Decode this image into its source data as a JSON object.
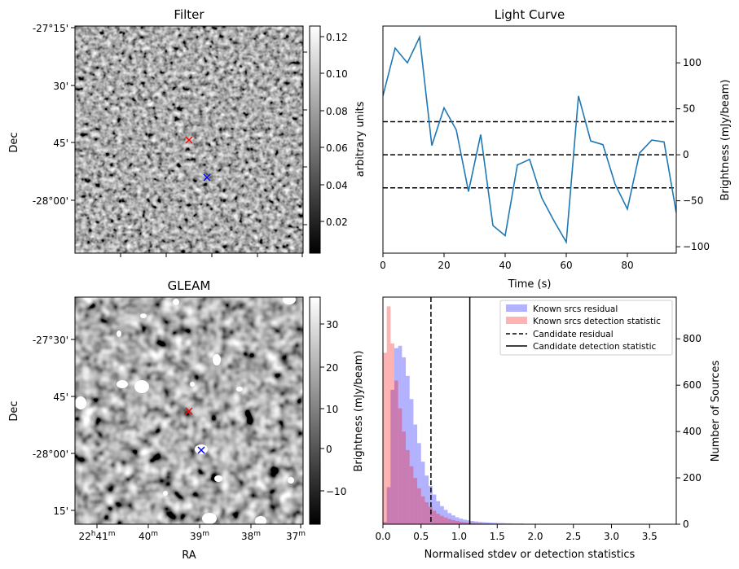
{
  "chart_data": [
    {
      "type": "heatmap",
      "title": "Filter",
      "xlabel": "",
      "ylabel": "Dec",
      "y_tick_labels": [
        "-27°15'",
        "30'",
        "45'",
        "-28°00'"
      ],
      "colorbar": {
        "label": "arbitrary units",
        "range": [
          0.003,
          0.126
        ],
        "tick_labels": [
          "0.02",
          "0.04",
          "0.06",
          "0.08",
          "0.10",
          "0.12"
        ],
        "tick_values": [
          0.02,
          0.04,
          0.06,
          0.08,
          0.1,
          0.12
        ],
        "colormap": "gray"
      },
      "markers": [
        {
          "symbol": "x",
          "color": "#ff0000",
          "dec": "-27°46'"
        },
        {
          "symbol": "x",
          "color": "#0000ff",
          "dec": "-27°52'"
        }
      ]
    },
    {
      "type": "line",
      "title": "Light Curve",
      "xlabel": "Time (s)",
      "ylabel": "Brightness (mJy/beam)",
      "xlim": [
        0,
        96
      ],
      "ylim": [
        -107,
        140
      ],
      "x_ticks": [
        0,
        20,
        40,
        60,
        80
      ],
      "y_ticks": [
        -100,
        -50,
        0,
        50,
        100
      ],
      "series": [
        {
          "color": "#1f77b4",
          "x": [
            0,
            4,
            8,
            12,
            16,
            20,
            24,
            28,
            32,
            36,
            40,
            44,
            48,
            52,
            56,
            60,
            64,
            68,
            72,
            76,
            80,
            84,
            88,
            92,
            96
          ],
          "values": [
            64,
            116,
            100,
            128,
            10,
            51,
            27,
            -40,
            22,
            -77,
            -88,
            -11,
            -5,
            -47,
            -72,
            -95,
            64,
            15,
            11,
            -32,
            -59,
            2,
            16,
            14,
            -63
          ]
        }
      ],
      "hlines": [
        {
          "y": 36,
          "style": "dashed"
        },
        {
          "y": 0,
          "style": "dashed"
        },
        {
          "y": -36,
          "style": "dashed"
        }
      ]
    },
    {
      "type": "heatmap",
      "title": "GLEAM",
      "xlabel": "RA",
      "ylabel": "Dec",
      "x_tick_labels": [
        {
          "main": "22",
          "h": "h",
          "num": "41",
          "m": "m"
        },
        {
          "main": "",
          "h": "",
          "num": "40",
          "m": "m"
        },
        {
          "main": "",
          "h": "",
          "num": "39",
          "m": "m"
        },
        {
          "main": "",
          "h": "",
          "num": "38",
          "m": "m"
        },
        {
          "main": "",
          "h": "",
          "num": "37",
          "m": "m"
        }
      ],
      "y_tick_labels": [
        "-27°30'",
        "45'",
        "-28°00'",
        "15'"
      ],
      "colorbar": {
        "label": "Brightness (mJy/beam)",
        "range": [
          -18,
          36
        ],
        "tick_labels": [
          "−10",
          "0",
          "10",
          "20",
          "30"
        ],
        "tick_values": [
          -10,
          0,
          10,
          20,
          30
        ],
        "colormap": "gray"
      },
      "markers": [
        {
          "symbol": "x",
          "color": "#ff0000",
          "dec": "-27°50'"
        },
        {
          "symbol": "x",
          "color": "#0000ff",
          "dec": "-28°00'"
        }
      ]
    },
    {
      "type": "bar",
      "xlabel": "Normalised stdev or detection statistics",
      "ylabel": "Number of Sources",
      "xlim": [
        0,
        3.85
      ],
      "ylim": [
        0,
        980
      ],
      "x_ticks": [
        0.0,
        0.5,
        1.0,
        1.5,
        2.0,
        2.5,
        3.0,
        3.5
      ],
      "y_ticks": [
        0,
        200,
        400,
        600,
        800
      ],
      "bin_width": 0.05,
      "series": [
        {
          "name": "Known srcs residual",
          "color": "#0000ff",
          "alpha": 0.3,
          "bin_start": 0.0,
          "values": [
            10,
            160,
            580,
            760,
            770,
            720,
            640,
            540,
            430,
            350,
            270,
            210,
            165,
            128,
            100,
            78,
            62,
            48,
            38,
            30,
            24,
            20,
            17,
            14,
            12,
            10,
            9,
            8,
            7,
            6,
            5,
            5,
            4,
            4,
            3,
            3,
            3,
            2,
            2,
            2,
            2,
            2,
            2,
            1,
            1,
            1,
            1,
            1,
            1,
            1,
            1,
            1,
            1,
            1,
            1,
            1,
            1,
            1,
            1,
            1,
            1,
            1,
            1,
            1,
            1,
            1,
            1,
            1,
            1,
            1,
            1,
            1,
            1,
            1,
            1,
            1
          ]
        },
        {
          "name": "Known srcs detection statistic",
          "color": "#ff0000",
          "alpha": 0.3,
          "bin_start": 0.0,
          "values": [
            740,
            940,
            780,
            620,
            500,
            400,
            320,
            250,
            200,
            155,
            120,
            95,
            75,
            58,
            45,
            36,
            29,
            23,
            18,
            14,
            11,
            9,
            7,
            6,
            5,
            4,
            3,
            3,
            2,
            2,
            2,
            1,
            1,
            1,
            1,
            1,
            1
          ]
        }
      ],
      "vlines": [
        {
          "name": "Candidate residual",
          "x": 0.63,
          "style": "dashed"
        },
        {
          "name": "Candidate detection statistic",
          "x": 1.14,
          "style": "solid"
        }
      ],
      "legend_position": "top-right"
    }
  ]
}
